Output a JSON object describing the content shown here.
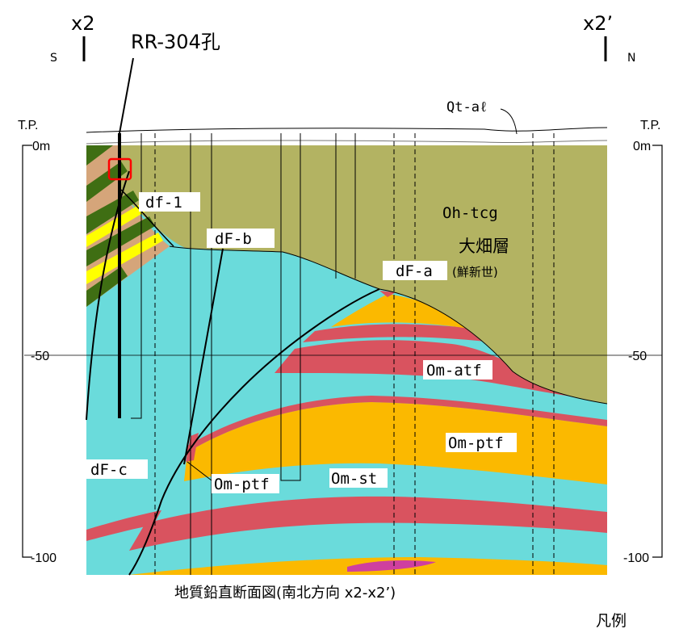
{
  "section": {
    "left_end": "x2",
    "right_end": "x2’",
    "left_dir": "S",
    "right_dir": "N",
    "borehole": "RR-304孔",
    "tp_left": "T.P.",
    "tp_right": "T.P.",
    "caption": "地質鉛直断面図(南北方向 x2-x2’)",
    "legend": "凡例"
  },
  "elevation_axis": {
    "left_ticks": [
      "0m",
      "-50",
      "-100"
    ],
    "right_ticks": [
      "0m",
      "-50",
      "-100"
    ]
  },
  "units": {
    "surface": "Qt-aℓ",
    "tcg": "Oh-tcg",
    "formation": "大畑層",
    "epoch": "(鮮新世)",
    "df1": "df-1",
    "dfb": "dF-b",
    "dfa": "dF-a",
    "dfc": "dF-c",
    "atf": "Om-atf",
    "ptf_right": "Om-ptf",
    "ptf_left": "Om-ptf",
    "st": "Om-st"
  },
  "colors": {
    "tcg": "#b3b362",
    "st": "#6adbdb",
    "atf": "#d9535f",
    "ptf": "#fbb900",
    "dfc_brown": "#d5a57a",
    "dark_green": "#3f6e13",
    "yellow": "#ffff00",
    "magenta": "#cf3f9f",
    "highlight": "#ff0000"
  }
}
